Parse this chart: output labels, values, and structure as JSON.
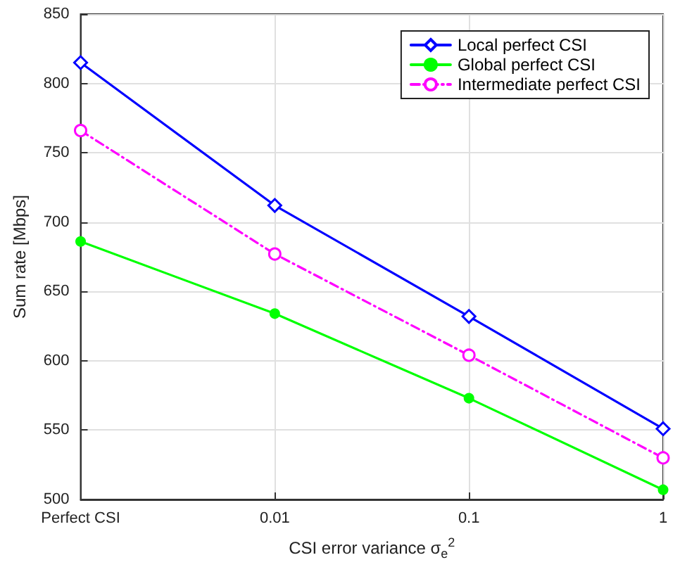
{
  "chart_data": {
    "type": "line",
    "xlabel": "CSI error variance σ$_{e}$$^{2}$",
    "ylabel": "Sum rate [Mbps]",
    "categories": [
      "Perfect CSI",
      "0.01",
      "0.1",
      "1"
    ],
    "series": [
      {
        "name": "Local perfect CSI",
        "color": "#0000ff",
        "values": [
          815,
          712,
          632,
          551
        ],
        "marker": "diamond",
        "line_style": "solid"
      },
      {
        "name": "Global perfect CSI",
        "color": "#00ff00",
        "values": [
          686,
          634,
          573,
          507
        ],
        "marker": "circle",
        "line_style": "solid"
      },
      {
        "name": "Intermediate perfect CSI",
        "color": "#ff00ff",
        "values": [
          766,
          677,
          604,
          530
        ],
        "marker": "circle",
        "line_style": "dashed"
      }
    ],
    "ylim": [
      500,
      850
    ],
    "yticks": [
      500,
      550,
      600,
      650,
      700,
      750,
      800,
      850
    ],
    "grid": true,
    "legend": "top right"
  }
}
